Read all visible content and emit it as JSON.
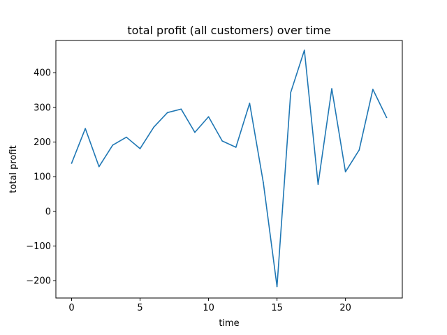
{
  "chart_data": {
    "type": "line",
    "title": "total profit (all customers) over time",
    "xlabel": "time",
    "ylabel": "total profit",
    "xlim": [
      -1.15,
      24.15
    ],
    "ylim": [
      -250,
      493
    ],
    "x_ticks": [
      0,
      5,
      10,
      15,
      20
    ],
    "y_ticks": [
      -200,
      -100,
      0,
      100,
      200,
      300,
      400
    ],
    "x_tick_labels": [
      "0",
      "5",
      "10",
      "15",
      "20"
    ],
    "y_tick_labels": [
      "−200",
      "−100",
      "0",
      "100",
      "200",
      "300",
      "400"
    ],
    "grid": false,
    "legend": "none",
    "series": [
      {
        "color": "#1f77b4",
        "x": [
          0,
          1,
          2,
          3,
          4,
          5,
          6,
          7,
          8,
          9,
          10,
          11,
          12,
          13,
          14,
          15,
          16,
          17,
          18,
          19,
          20,
          21,
          22,
          23
        ],
        "values": [
          139,
          239,
          129,
          191,
          214,
          181,
          243,
          285,
          295,
          228,
          273,
          203,
          185,
          312,
          83,
          -217,
          343,
          465,
          78,
          354,
          114,
          177,
          352,
          271
        ]
      }
    ]
  }
}
